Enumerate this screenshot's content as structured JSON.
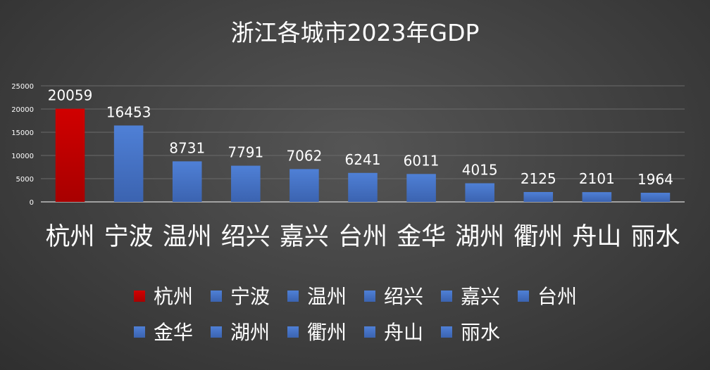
{
  "chart_data": {
    "type": "bar",
    "title": "浙江各城市2023年GDP",
    "xlabel": "",
    "ylabel": "",
    "ylim": [
      0,
      25000
    ],
    "yticks": [
      0,
      5000,
      10000,
      15000,
      20000,
      25000
    ],
    "grid": true,
    "legend_position": "bottom",
    "categories": [
      "杭州",
      "宁波",
      "温州",
      "绍兴",
      "嘉兴",
      "台州",
      "金华",
      "湖州",
      "衢州",
      "舟山",
      "丽水"
    ],
    "values": [
      20059,
      16453,
      8731,
      7791,
      7062,
      6241,
      6011,
      4015,
      2125,
      2101,
      1964
    ],
    "colors": [
      "#c00000",
      "#4472c4",
      "#4472c4",
      "#4472c4",
      "#4472c4",
      "#4472c4",
      "#4472c4",
      "#4472c4",
      "#4472c4",
      "#4472c4",
      "#4472c4"
    ],
    "gridline_color": "#6a6a6a"
  }
}
